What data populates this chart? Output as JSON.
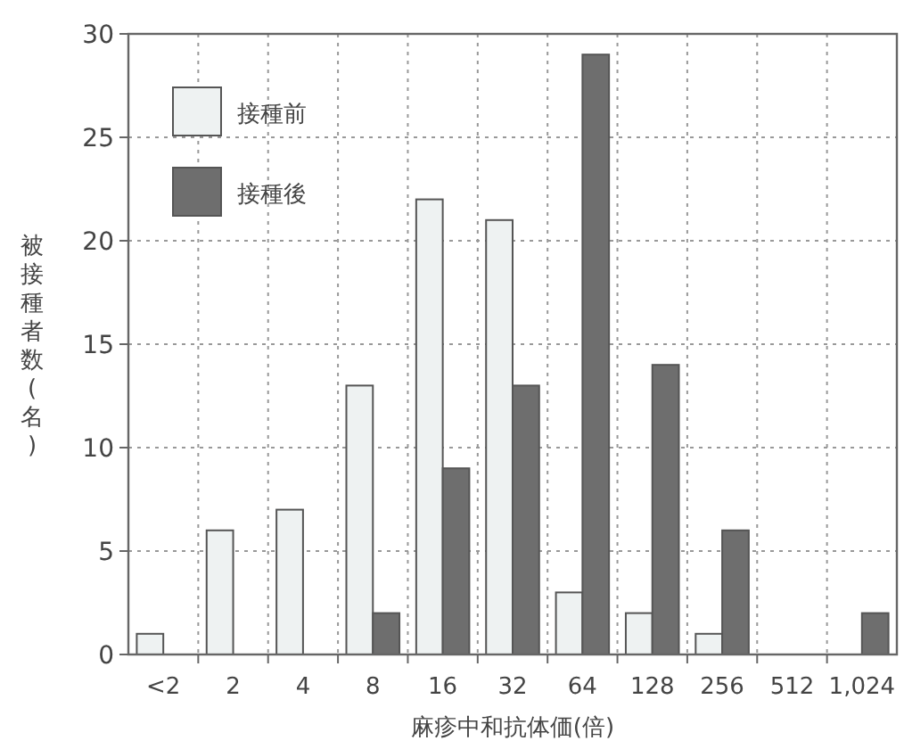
{
  "chart_data": {
    "type": "bar",
    "xlabel": "麻疹中和抗体価(倍)",
    "ylabel": "被接種者数(名)",
    "categories": [
      "<2",
      "2",
      "4",
      "8",
      "16",
      "32",
      "64",
      "128",
      "256",
      "512",
      "1,024"
    ],
    "series": [
      {
        "name": "接種前",
        "color": "#eef2f2",
        "values": [
          1,
          6,
          7,
          13,
          22,
          21,
          3,
          2,
          1,
          0,
          0
        ]
      },
      {
        "name": "接種後",
        "color": "#6e6e6e",
        "values": [
          0,
          0,
          0,
          2,
          9,
          13,
          29,
          14,
          6,
          0,
          2
        ]
      }
    ],
    "ylim": [
      0,
      30
    ],
    "yticks": [
      0,
      5,
      10,
      15,
      20,
      25,
      30
    ],
    "grid": true,
    "legend": "top left"
  }
}
